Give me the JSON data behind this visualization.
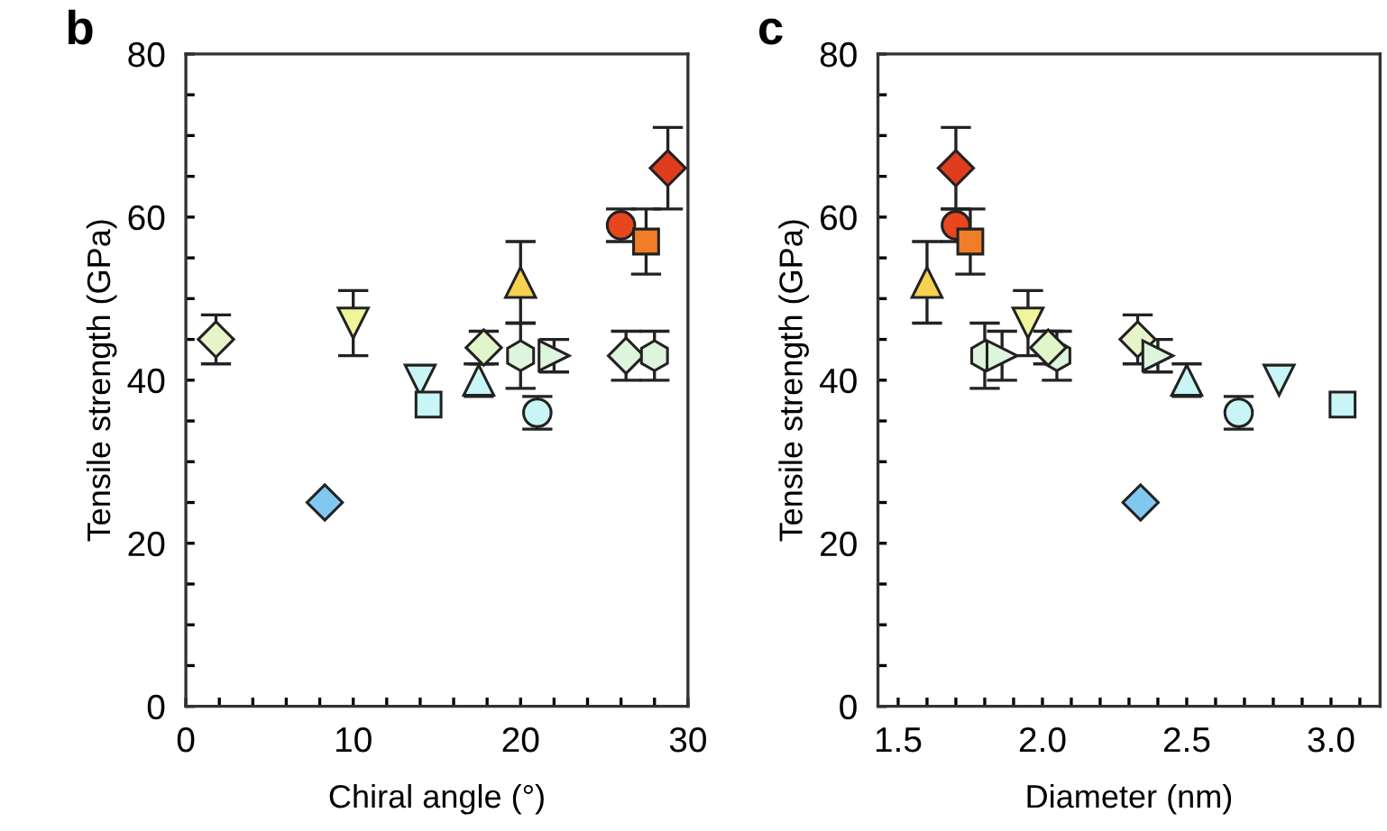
{
  "chart_data": [
    {
      "type": "scatter",
      "title": "b",
      "xlabel": "Chiral angle (°)",
      "ylabel": "Tensile strength (GPa)",
      "xlim": [
        0,
        30
      ],
      "xticks": [
        0,
        {
          "value": 2,
          "label": null
        },
        {
          "value": 4,
          "label": null
        },
        {
          "value": 6,
          "label": null
        },
        {
          "value": 8,
          "label": null
        },
        10,
        {
          "value": 12,
          "label": null
        },
        {
          "value": 14,
          "label": null
        },
        {
          "value": 16,
          "label": null
        },
        {
          "value": 18,
          "label": null
        },
        20,
        {
          "value": 22,
          "label": null
        },
        {
          "value": 24,
          "label": null
        },
        {
          "value": 26,
          "label": null
        },
        {
          "value": 28,
          "label": null
        },
        30
      ],
      "ylim": [
        0,
        80
      ],
      "yticks": [
        0,
        {
          "value": 5,
          "label": null
        },
        {
          "value": 10,
          "label": null
        },
        {
          "value": 15,
          "label": null
        },
        20,
        {
          "value": 25,
          "label": null
        },
        {
          "value": 30,
          "label": null
        },
        {
          "value": 35,
          "label": null
        },
        40,
        {
          "value": 45,
          "label": null
        },
        {
          "value": 50,
          "label": null
        },
        {
          "value": 55,
          "label": null
        },
        60,
        {
          "value": 65,
          "label": null
        },
        {
          "value": 70,
          "label": null
        },
        {
          "value": 75,
          "label": null
        },
        80
      ],
      "grid": false,
      "legend": false,
      "series": [
        {
          "marker": "diamond",
          "color": "#e6f5c8",
          "x": [
            1.8
          ],
          "values": [
            45
          ],
          "errors": [
            3
          ]
        },
        {
          "marker": "triangle_down",
          "color": "#f0f59a",
          "x": [
            10
          ],
          "values": [
            47
          ],
          "errors": [
            4
          ]
        },
        {
          "marker": "diamond",
          "color": "#80c8f0",
          "x": [
            8.3
          ],
          "values": [
            25
          ]
        },
        {
          "marker": "triangle_down",
          "color": "#c8f5f5",
          "x": [
            14
          ],
          "values": [
            40
          ]
        },
        {
          "marker": "square",
          "color": "#c8f5f5",
          "x": [
            14.5
          ],
          "values": [
            37
          ]
        },
        {
          "marker": "triangle",
          "color": "#c8f5f5",
          "x": [
            17.5
          ],
          "values": [
            40
          ],
          "errors": [
            2
          ]
        },
        {
          "marker": "diamond",
          "color": "#e0f5c8",
          "x": [
            17.8
          ],
          "values": [
            44
          ],
          "errors": [
            2
          ]
        },
        {
          "marker": "triangle",
          "color": "#f5d250",
          "x": [
            20
          ],
          "values": [
            52
          ],
          "errors": [
            5
          ]
        },
        {
          "color": "#dcf5dc",
          "x": [
            20
          ],
          "values": [
            43
          ],
          "errors": [
            4
          ]
        },
        {
          "marker": "circle",
          "color": "#c8f5f5",
          "x": [
            21
          ],
          "values": [
            36
          ],
          "errors": [
            2
          ]
        },
        {
          "marker": "triangle_right",
          "color": "#dcf5dc",
          "x": [
            22
          ],
          "values": [
            43
          ],
          "errors": [
            2
          ]
        },
        {
          "marker": "diamond",
          "color": "#dcf5dc",
          "x": [
            26.3
          ],
          "values": [
            43
          ],
          "errors": [
            3
          ]
        },
        {
          "color": "#dcf5dc",
          "x": [
            28
          ],
          "values": [
            43
          ],
          "errors": [
            3
          ]
        },
        {
          "marker": "circle",
          "color": "#e8461e",
          "x": [
            26
          ],
          "values": [
            59
          ],
          "errors": [
            2
          ]
        },
        {
          "marker": "square",
          "color": "#f07d28",
          "x": [
            27.5
          ],
          "values": [
            57
          ],
          "errors": [
            4
          ]
        },
        {
          "marker": "diamond",
          "color": "#e03c1e",
          "x": [
            28.8
          ],
          "values": [
            66
          ],
          "errors": [
            5
          ]
        }
      ]
    },
    {
      "type": "scatter",
      "title": "c",
      "xlabel": "Diameter (nm)",
      "ylabel": "Tensile strength (GPa)",
      "xlim": [
        1.43,
        3.17
      ],
      "xticks": [
        {
          "value": 1.5,
          "label": "1.5"
        },
        {
          "value": 1.6,
          "label": null
        },
        {
          "value": 1.7,
          "label": null
        },
        {
          "value": 1.8,
          "label": null
        },
        {
          "value": 1.9,
          "label": null
        },
        {
          "value": 2.0,
          "label": "2.0"
        },
        {
          "value": 2.1,
          "label": null
        },
        {
          "value": 2.2,
          "label": null
        },
        {
          "value": 2.3,
          "label": null
        },
        {
          "value": 2.4,
          "label": null
        },
        {
          "value": 2.5,
          "label": "2.5"
        },
        {
          "value": 2.6,
          "label": null
        },
        {
          "value": 2.7,
          "label": null
        },
        {
          "value": 2.8,
          "label": null
        },
        {
          "value": 2.9,
          "label": null
        },
        {
          "value": 3.0,
          "label": "3.0"
        },
        {
          "value": 3.1,
          "label": null
        }
      ],
      "ylim": [
        0,
        80
      ],
      "yticks": [
        0,
        {
          "value": 5,
          "label": null
        },
        {
          "value": 10,
          "label": null
        },
        {
          "value": 15,
          "label": null
        },
        20,
        {
          "value": 25,
          "label": null
        },
        {
          "value": 30,
          "label": null
        },
        {
          "value": 35,
          "label": null
        },
        40,
        {
          "value": 45,
          "label": null
        },
        {
          "value": 50,
          "label": null
        },
        {
          "value": 55,
          "label": null
        },
        60,
        {
          "value": 65,
          "label": null
        },
        {
          "value": 70,
          "label": null
        },
        {
          "value": 75,
          "label": null
        },
        80
      ],
      "grid": false,
      "legend": false,
      "series": [
        {
          "marker": "diamond",
          "color": "#e6f5c8",
          "x": [
            2.33
          ],
          "values": [
            45
          ],
          "errors": [
            3
          ]
        },
        {
          "marker": "triangle_down",
          "color": "#f0f59a",
          "x": [
            1.95
          ],
          "values": [
            47
          ],
          "errors": [
            4
          ]
        },
        {
          "marker": "diamond",
          "color": "#80c8f0",
          "x": [
            2.34
          ],
          "values": [
            25
          ]
        },
        {
          "marker": "triangle_down",
          "color": "#c8f5f5",
          "x": [
            2.82
          ],
          "values": [
            40
          ]
        },
        {
          "marker": "square",
          "color": "#c8f5f5",
          "x": [
            3.04
          ],
          "values": [
            37
          ]
        },
        {
          "marker": "triangle",
          "color": "#c8f5f5",
          "x": [
            2.5
          ],
          "values": [
            40
          ],
          "errors": [
            2
          ]
        },
        {
          "marker": "triangle",
          "color": "#f5d250",
          "x": [
            1.6
          ],
          "values": [
            52
          ],
          "errors": [
            5
          ]
        },
        {
          "color": "#dcf5dc",
          "x": [
            1.8
          ],
          "values": [
            43
          ],
          "errors": [
            4
          ]
        },
        {
          "marker": "circle",
          "color": "#c8f5f5",
          "x": [
            2.68
          ],
          "values": [
            36
          ],
          "errors": [
            2
          ]
        },
        {
          "marker": "triangle_right",
          "color": "#dcf5dc",
          "x": [
            2.4
          ],
          "values": [
            43
          ],
          "errors": [
            2
          ]
        },
        {
          "marker": "triangle_right",
          "color": "#dcf5dc",
          "x": [
            1.86
          ],
          "values": [
            43
          ],
          "errors": [
            3
          ]
        },
        {
          "color": "#dcf5dc",
          "x": [
            2.05
          ],
          "values": [
            43
          ],
          "errors": [
            3
          ]
        },
        {
          "marker": "diamond",
          "color": "#e0f5c8",
          "x": [
            2.02
          ],
          "values": [
            44
          ],
          "errors": [
            2
          ]
        },
        {
          "marker": "circle",
          "color": "#e8461e",
          "x": [
            1.7
          ],
          "values": [
            59
          ],
          "errors": [
            2
          ]
        },
        {
          "marker": "square",
          "color": "#f07d28",
          "x": [
            1.75
          ],
          "values": [
            57
          ],
          "errors": [
            4
          ]
        },
        {
          "marker": "diamond",
          "color": "#e03c1e",
          "x": [
            1.7
          ],
          "values": [
            66
          ],
          "errors": [
            5
          ]
        }
      ]
    }
  ]
}
